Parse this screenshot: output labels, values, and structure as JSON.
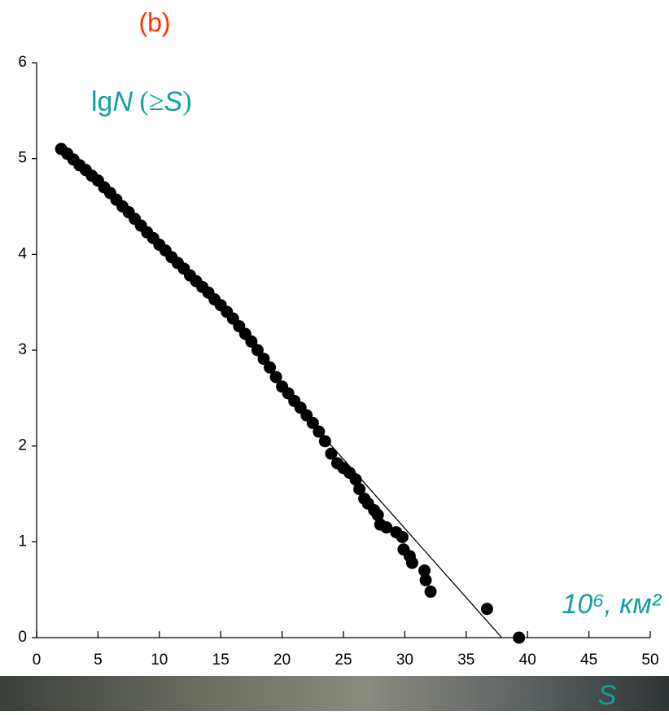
{
  "chart_data": {
    "type": "scatter",
    "title": "(b)",
    "y_label_parts": [
      "lg",
      "N",
      " (≥",
      "S",
      ")"
    ],
    "x_label": "S",
    "x_units": "10⁶, км²",
    "color": "#000000",
    "xlim": [
      0,
      50
    ],
    "xticks": [
      0,
      5,
      10,
      15,
      20,
      25,
      30,
      35,
      40,
      45,
      50
    ],
    "ylim": [
      0,
      6
    ],
    "yticks": [
      0,
      1,
      2,
      3,
      4,
      5,
      6
    ],
    "x": [
      2.0,
      2.5,
      3,
      3.5,
      4,
      4.5,
      5,
      5.5,
      6,
      6.5,
      7,
      7.5,
      8,
      8.5,
      9,
      9.5,
      10,
      10.5,
      11,
      11.5,
      12,
      12.5,
      13,
      13.5,
      14,
      14.5,
      15,
      15.5,
      16,
      16.5,
      17,
      17.5,
      18,
      18.5,
      19,
      19.5,
      20,
      20.5,
      21,
      21.5,
      22,
      22.5,
      23,
      23.5,
      24,
      24.5,
      25,
      25.5,
      26,
      26.3,
      26.7,
      27,
      27.5,
      27.8,
      28,
      28.5,
      29.3,
      29.8,
      29.9,
      30.4,
      30.6,
      31.6,
      31.7,
      32.1,
      36.7,
      39.3
    ],
    "y": [
      5.1,
      5.05,
      4.99,
      4.93,
      4.88,
      4.82,
      4.77,
      4.7,
      4.64,
      4.57,
      4.5,
      4.44,
      4.37,
      4.3,
      4.23,
      4.17,
      4.1,
      4.04,
      3.97,
      3.91,
      3.85,
      3.78,
      3.72,
      3.66,
      3.6,
      3.53,
      3.47,
      3.4,
      3.33,
      3.25,
      3.17,
      3.09,
      3.0,
      2.91,
      2.82,
      2.72,
      2.62,
      2.55,
      2.47,
      2.4,
      2.32,
      2.24,
      2.15,
      2.05,
      1.92,
      1.82,
      1.77,
      1.72,
      1.65,
      1.55,
      1.45,
      1.4,
      1.33,
      1.28,
      1.18,
      1.15,
      1.1,
      1.05,
      0.92,
      0.85,
      0.78,
      0.7,
      0.6,
      0.48,
      0.3,
      0.0
    ],
    "fit_line": {
      "x": [
        23,
        37.9
      ],
      "y": [
        2.15,
        0
      ]
    }
  }
}
